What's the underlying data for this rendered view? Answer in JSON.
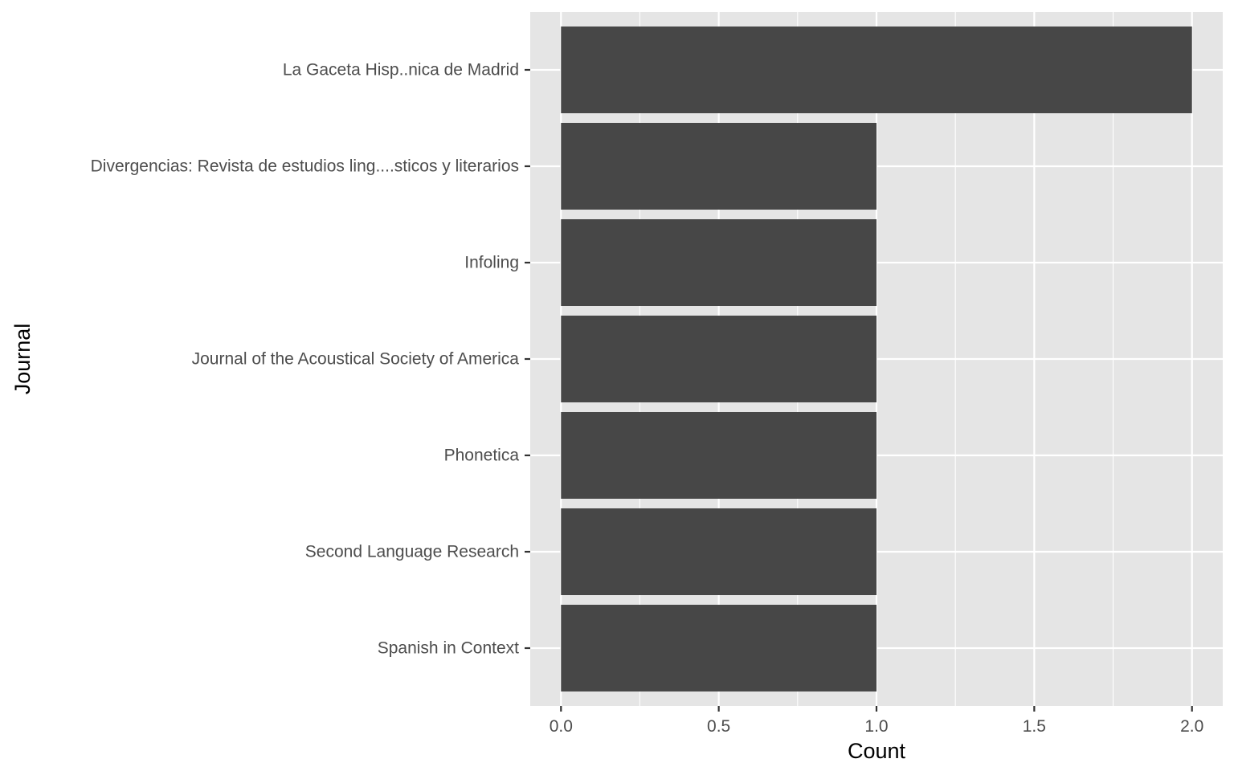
{
  "chart_data": {
    "type": "bar",
    "orientation": "horizontal",
    "categories": [
      "La Gaceta Hisp..nica de Madrid",
      "Divergencias: Revista de estudios ling....sticos y literarios",
      "Infoling",
      "Journal of the Acoustical Society of America",
      "Phonetica",
      "Second Language Research",
      "Spanish in Context"
    ],
    "values": [
      2,
      1,
      1,
      1,
      1,
      1,
      1
    ],
    "xlabel": "Count",
    "ylabel": "Journal",
    "xlim": [
      -0.0975,
      2.0975
    ],
    "x_ticks": [
      0,
      0.5,
      1,
      1.5,
      2
    ],
    "x_tick_labels": [
      "0.0",
      "0.5",
      "1.0",
      "1.5",
      "2.0"
    ],
    "grid": true,
    "colors": {
      "panel": "#E5E5E5",
      "grid": "#FFFFFF",
      "bar": "#474747",
      "tick_text": "#4D4D4D",
      "title_text": "#000000",
      "tick_mark": "#333333"
    }
  }
}
